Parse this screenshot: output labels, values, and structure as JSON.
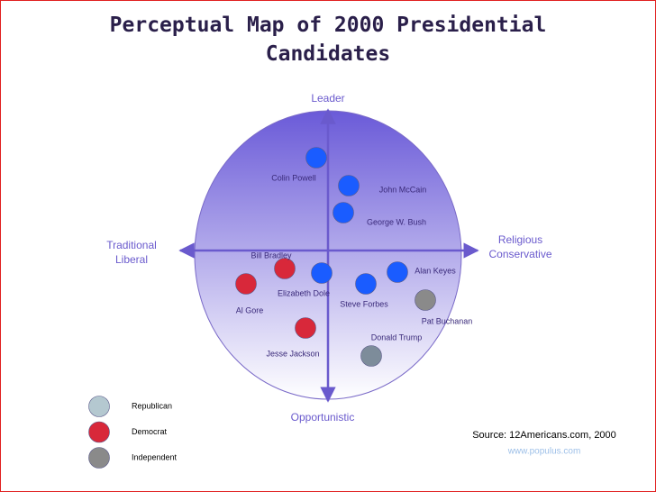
{
  "title": "Perceptual Map of 2000 Presidential Candidates",
  "axes": {
    "top": "Leader",
    "bottom": "Opportunistic",
    "left": "Traditional Liberal",
    "right": "Religious Conservative"
  },
  "candidates": [
    {
      "name": "Colin Powell",
      "color": "#1a5cff"
    },
    {
      "name": "John McCain",
      "color": "#1a5cff"
    },
    {
      "name": "George W. Bush",
      "color": "#1a5cff"
    },
    {
      "name": "Bill Bradley",
      "color": "#d8283a"
    },
    {
      "name": "Alan Keyes",
      "color": "#1a5cff"
    },
    {
      "name": "Elizabeth Dole",
      "color": "#1a5cff"
    },
    {
      "name": "Al Gore",
      "color": "#d8283a"
    },
    {
      "name": "Steve Forbes",
      "color": "#1a5cff"
    },
    {
      "name": "Pat Buchanan",
      "color": "#8a8a8a"
    },
    {
      "name": "Jesse Jackson",
      "color": "#d8283a"
    },
    {
      "name": "Donald Trump",
      "color": "#7d8c9a"
    }
  ],
  "legend": [
    {
      "label": "Republican",
      "color": "#b4c8d0"
    },
    {
      "label": "Democrat",
      "color": "#d8283a"
    },
    {
      "label": "Independent",
      "color": "#8a8a8a"
    }
  ],
  "source": "Source: 12Americans.com, 2000",
  "url": "www.populus.com"
}
